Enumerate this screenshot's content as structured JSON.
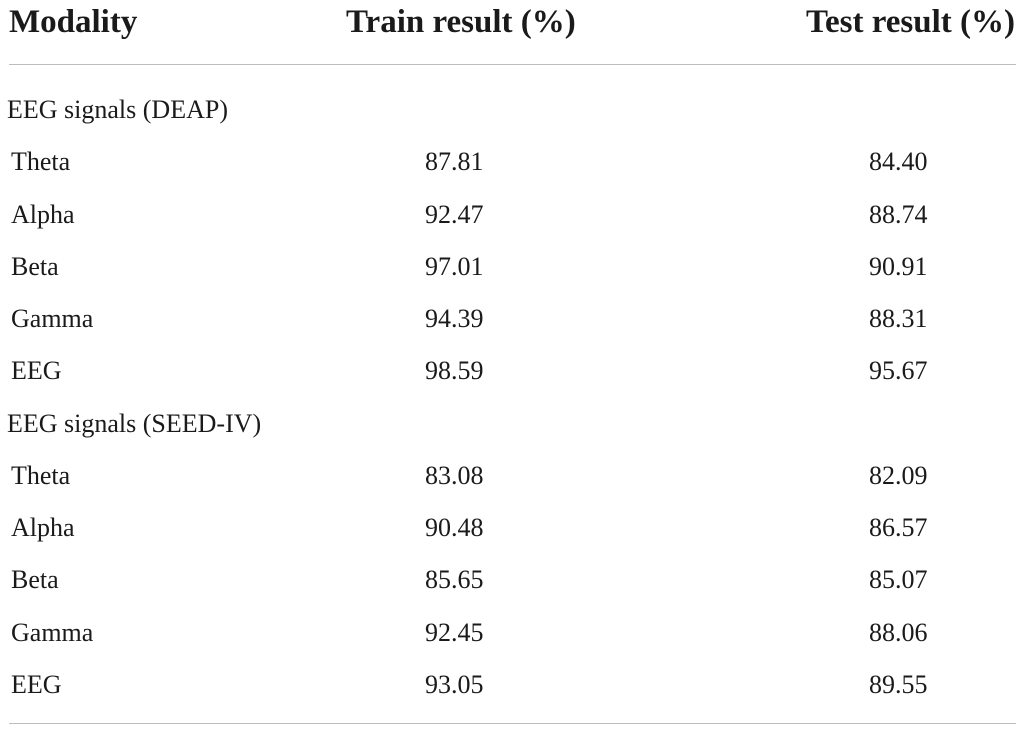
{
  "table": {
    "headers": {
      "modality": "Modality",
      "train": "Train result (%)",
      "test": "Test result (%)"
    },
    "sections": [
      {
        "title": "EEG signals (DEAP)",
        "rows": [
          {
            "modality": "Theta",
            "train": "87.81",
            "test": "84.40"
          },
          {
            "modality": "Alpha",
            "train": "92.47",
            "test": "88.74"
          },
          {
            "modality": "Beta",
            "train": "97.01",
            "test": "90.91"
          },
          {
            "modality": "Gamma",
            "train": "94.39",
            "test": "88.31"
          },
          {
            "modality": "EEG",
            "train": "98.59",
            "test": "95.67"
          }
        ]
      },
      {
        "title": "EEG signals (SEED-IV)",
        "rows": [
          {
            "modality": "Theta",
            "train": "83.08",
            "test": "82.09"
          },
          {
            "modality": "Alpha",
            "train": "90.48",
            "test": "86.57"
          },
          {
            "modality": "Beta",
            "train": "85.65",
            "test": "85.07"
          },
          {
            "modality": "Gamma",
            "train": "92.45",
            "test": "88.06"
          },
          {
            "modality": "EEG",
            "train": "93.05",
            "test": "89.55"
          }
        ]
      }
    ]
  }
}
